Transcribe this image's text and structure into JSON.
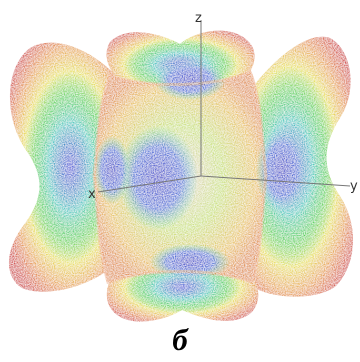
{
  "figure": {
    "caption": "б",
    "axes": {
      "x": "x",
      "y": "y",
      "z": "z"
    },
    "colors": {
      "outer": "#d23a3a",
      "mid_outer": "#e8a23a",
      "mid": "#e8e046",
      "inner_green": "#4fd24f",
      "inner_cyan": "#2cc9c0",
      "core": "#3a3fd8"
    }
  }
}
